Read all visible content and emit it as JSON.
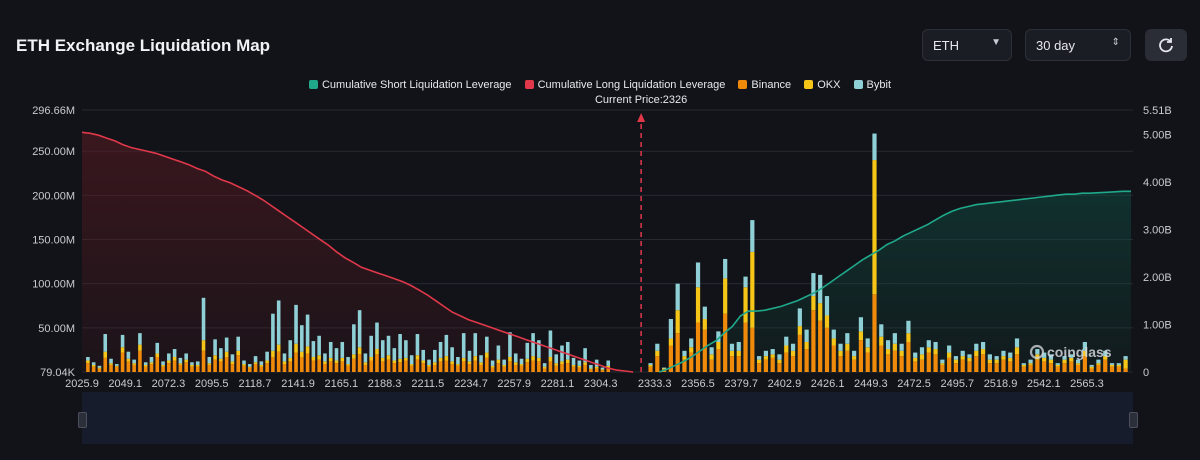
{
  "title": "ETH Exchange Liquidation Map",
  "controls": {
    "coin": "ETH",
    "range": "30 day",
    "refresh_icon": "refresh-icon"
  },
  "legend": [
    {
      "label": "Cumulative Short Liquidation Leverage",
      "color": "#1fa88a"
    },
    {
      "label": "Cumulative Long Liquidation Leverage",
      "color": "#e0384a"
    },
    {
      "label": "Binance",
      "color": "#f08a0a"
    },
    {
      "label": "OKX",
      "color": "#f5c518"
    },
    {
      "label": "Bybit",
      "color": "#8fd0d6"
    }
  ],
  "current_price_label": "Current Price:2326",
  "watermark": "coinglass",
  "chart_data": {
    "type": "bar",
    "current_price": 2326,
    "x_ticks": [
      "2025.9",
      "2049.1",
      "2072.3",
      "2095.5",
      "2118.7",
      "2141.9",
      "2165.1",
      "2188.3",
      "2211.5",
      "2234.7",
      "2257.9",
      "2281.1",
      "2304.3",
      "2333.3",
      "2356.5",
      "2379.7",
      "2402.9",
      "2426.1",
      "2449.3",
      "2472.5",
      "2495.7",
      "2518.9",
      "2542.1",
      "2565.3"
    ],
    "y_left": {
      "ticks": [
        "79.04K",
        "50.00M",
        "100.00M",
        "150.00M",
        "200.00M",
        "250.00M",
        "296.66M"
      ],
      "range": [
        0,
        296.66
      ],
      "unit": "M"
    },
    "y_right": {
      "ticks": [
        "0",
        "1.00B",
        "2.00B",
        "3.00B",
        "4.00B",
        "5.00B",
        "5.51B"
      ],
      "range": [
        0,
        5.51
      ],
      "unit": "B"
    },
    "bars_left_binance": [
      10,
      6,
      4,
      16,
      8,
      6,
      22,
      12,
      8,
      24,
      6,
      9,
      17,
      6,
      10,
      13,
      8,
      11,
      6,
      6,
      24,
      8,
      14,
      12,
      17,
      9,
      19,
      7,
      5,
      9,
      6,
      10,
      17,
      23,
      9,
      12,
      22,
      17,
      21,
      13,
      14,
      9,
      12,
      10,
      12,
      7,
      15,
      20,
      8,
      13,
      20,
      12,
      14,
      10,
      11,
      13,
      7,
      14,
      10,
      6,
      8,
      12,
      13,
      9,
      7,
      12,
      9,
      13,
      8,
      16,
      5,
      10,
      6,
      12,
      8,
      7,
      11,
      13,
      12,
      4,
      12,
      7,
      9,
      10,
      6,
      5,
      8,
      3,
      4,
      2,
      5
    ],
    "bars_left_okx": [
      3,
      2,
      1,
      7,
      2,
      1,
      6,
      3,
      2,
      7,
      2,
      2,
      4,
      2,
      3,
      4,
      2,
      3,
      2,
      2,
      12,
      2,
      5,
      3,
      6,
      3,
      5,
      2,
      1,
      2,
      2,
      3,
      7,
      8,
      3,
      4,
      10,
      6,
      8,
      4,
      5,
      3,
      4,
      3,
      4,
      2,
      5,
      8,
      3,
      4,
      6,
      4,
      5,
      3,
      4,
      3,
      2,
      5,
      3,
      2,
      3,
      4,
      5,
      3,
      2,
      4,
      3,
      5,
      3,
      6,
      2,
      4,
      2,
      5,
      3,
      2,
      4,
      5,
      4,
      2,
      5,
      3,
      3,
      4,
      2,
      2,
      3,
      1,
      2,
      1,
      2
    ],
    "bars_left_bybit": [
      4,
      3,
      2,
      20,
      5,
      2,
      14,
      8,
      4,
      13,
      3,
      6,
      12,
      4,
      8,
      9,
      6,
      7,
      3,
      4,
      48,
      7,
      18,
      12,
      16,
      8,
      16,
      4,
      3,
      7,
      4,
      10,
      42,
      50,
      9,
      20,
      44,
      30,
      36,
      18,
      22,
      9,
      18,
      14,
      18,
      8,
      34,
      42,
      10,
      24,
      30,
      20,
      22,
      14,
      28,
      20,
      10,
      24,
      12,
      6,
      14,
      18,
      24,
      16,
      8,
      28,
      12,
      26,
      8,
      18,
      6,
      16,
      6,
      28,
      10,
      6,
      18,
      26,
      20,
      4,
      30,
      10,
      18,
      20,
      8,
      6,
      16,
      4,
      8,
      2,
      6
    ],
    "bars_right_binance": [
      6,
      18,
      3,
      30,
      44,
      14,
      22,
      56,
      48,
      14,
      26,
      66,
      18,
      18,
      56,
      50,
      10,
      14,
      16,
      10,
      22,
      18,
      42,
      26,
      70,
      58,
      50,
      30,
      18,
      24,
      14,
      36,
      22,
      88,
      30,
      20,
      24,
      18,
      34,
      12,
      14,
      22,
      20,
      8,
      16,
      10,
      14,
      12,
      18,
      20,
      10,
      10,
      14,
      12,
      20,
      6,
      8,
      14,
      12,
      10,
      6,
      10,
      12,
      8,
      18,
      4,
      8,
      14,
      6,
      6,
      4
    ],
    "bars_right_okx": [
      2,
      6,
      1,
      8,
      26,
      4,
      6,
      40,
      12,
      6,
      8,
      40,
      6,
      6,
      40,
      86,
      4,
      4,
      4,
      4,
      8,
      6,
      10,
      8,
      16,
      20,
      14,
      8,
      6,
      8,
      4,
      10,
      6,
      152,
      10,
      6,
      8,
      6,
      10,
      4,
      6,
      6,
      6,
      2,
      6,
      4,
      4,
      4,
      6,
      6,
      4,
      4,
      4,
      4,
      8,
      2,
      2,
      6,
      4,
      4,
      2,
      4,
      4,
      2,
      6,
      2,
      2,
      4,
      2,
      2,
      10
    ],
    "bars_right_bybit": [
      2,
      8,
      1,
      22,
      30,
      6,
      10,
      28,
      14,
      8,
      12,
      22,
      8,
      10,
      12,
      36,
      4,
      6,
      6,
      6,
      10,
      8,
      20,
      14,
      26,
      32,
      22,
      10,
      8,
      12,
      6,
      16,
      10,
      30,
      14,
      10,
      12,
      8,
      14,
      6,
      8,
      8,
      8,
      4,
      8,
      4,
      6,
      4,
      8,
      8,
      6,
      4,
      6,
      6,
      10,
      2,
      4,
      6,
      6,
      6,
      2,
      4,
      4,
      4,
      10,
      2,
      4,
      6,
      2,
      2,
      4
    ],
    "long_cumulative_B": [
      5.04,
      5.02,
      4.98,
      4.92,
      4.86,
      4.78,
      4.72,
      4.68,
      4.64,
      4.6,
      4.54,
      4.48,
      4.42,
      4.36,
      4.28,
      4.22,
      4.12,
      4.04,
      3.98,
      3.9,
      3.82,
      3.72,
      3.62,
      3.5,
      3.38,
      3.26,
      3.14,
      3.02,
      2.9,
      2.78,
      2.66,
      2.52,
      2.4,
      2.3,
      2.2,
      2.14,
      2.08,
      2.02,
      1.96,
      1.9,
      1.82,
      1.72,
      1.62,
      1.5,
      1.38,
      1.26,
      1.18,
      1.1,
      1.04,
      0.98,
      0.92,
      0.86,
      0.8,
      0.74,
      0.68,
      0.62,
      0.56,
      0.5,
      0.44,
      0.38,
      0.32,
      0.26,
      0.2,
      0.14,
      0.08,
      0.04,
      0.02,
      0.0
    ],
    "short_cumulative_B": [
      0.0,
      0.06,
      0.14,
      0.22,
      0.32,
      0.44,
      0.56,
      0.66,
      0.82,
      0.96,
      1.18,
      1.28,
      1.28,
      1.3,
      1.34,
      1.38,
      1.44,
      1.5,
      1.58,
      1.66,
      1.76,
      1.88,
      2.0,
      2.12,
      2.24,
      2.36,
      2.46,
      2.56,
      2.68,
      2.76,
      2.86,
      2.94,
      3.02,
      3.1,
      3.2,
      3.3,
      3.38,
      3.44,
      3.48,
      3.52,
      3.54,
      3.56,
      3.58,
      3.6,
      3.62,
      3.64,
      3.66,
      3.68,
      3.7,
      3.72,
      3.74,
      3.74,
      3.76,
      3.76,
      3.77,
      3.78,
      3.79,
      3.8,
      3.8
    ]
  }
}
